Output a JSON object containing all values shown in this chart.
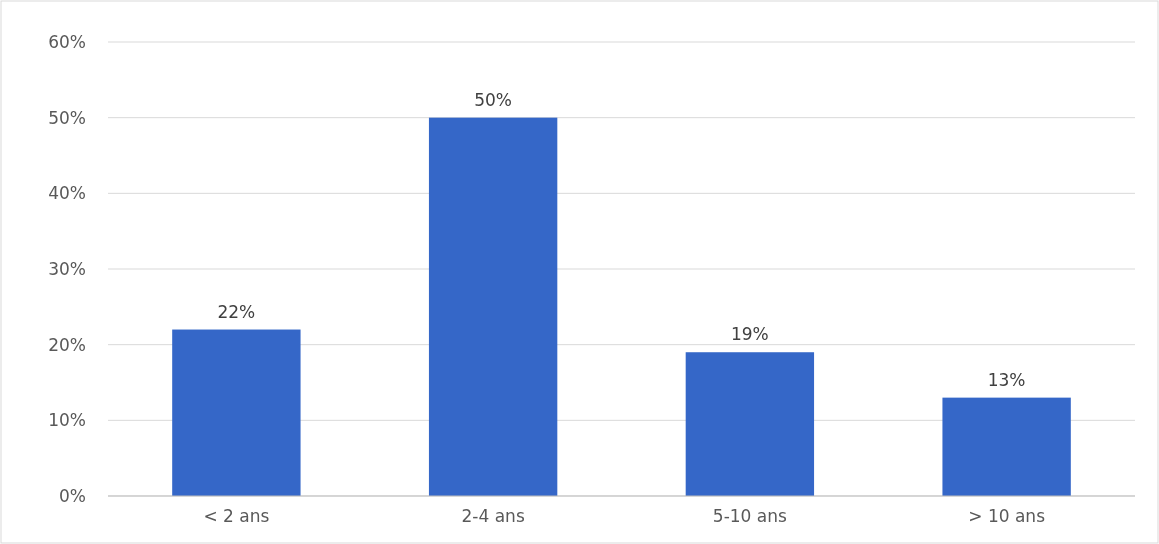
{
  "chart_data": {
    "type": "bar",
    "categories": [
      "< 2 ans",
      "2-4 ans",
      "5-10 ans",
      "> 10 ans"
    ],
    "values": [
      22,
      50,
      19,
      13
    ],
    "value_labels": [
      "22%",
      "50%",
      "19%",
      "13%"
    ],
    "color": "#3567c8",
    "ylim": [
      0,
      60
    ],
    "yticks": [
      {
        "value": 0,
        "label": "0%"
      },
      {
        "value": 10,
        "label": "10%"
      },
      {
        "value": 20,
        "label": "20%"
      },
      {
        "value": 30,
        "label": "30%"
      },
      {
        "value": 40,
        "label": "40%"
      },
      {
        "value": 50,
        "label": "50%"
      },
      {
        "value": 60,
        "label": "60%"
      }
    ],
    "grid": "y"
  }
}
